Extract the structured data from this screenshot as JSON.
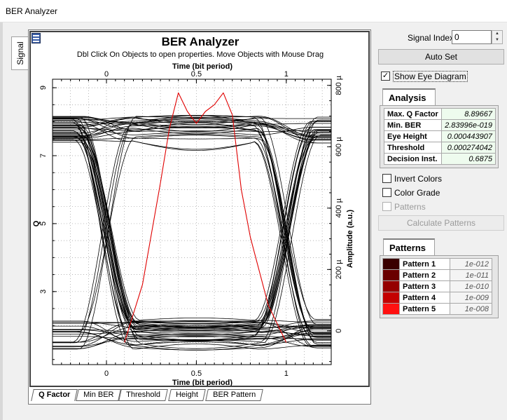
{
  "window": {
    "title": "BER Analyzer"
  },
  "side_tab": {
    "label": "Signal"
  },
  "plot": {
    "title": "BER Analyzer",
    "subtitle": "Dbl Click On Objects to open properties.  Move Objects with Mouse Drag"
  },
  "chart_data": {
    "type": "line",
    "title": "BER Analyzer",
    "xlabel": "Time (bit period)",
    "x2label": "Time (bit period)",
    "ylabel": "Q",
    "y2label": "Amplitude (a.u.)",
    "xlim": [
      -0.3,
      1.25
    ],
    "x_ticks": [
      "0",
      "0.5",
      "1"
    ],
    "x_tick_values": [
      0,
      0.5,
      1
    ],
    "q_ylim": [
      0.85,
      9.25
    ],
    "q_ticks": [
      "3",
      "5",
      "7",
      "9"
    ],
    "q_tick_values": [
      3,
      5,
      7,
      9
    ],
    "amp_ylim": [
      -110,
      820
    ],
    "amp_ticks": [
      "0",
      "200 µ",
      "400 µ",
      "600 µ",
      "800 µ"
    ],
    "amp_tick_values": [
      0,
      200,
      400,
      600,
      800
    ],
    "grid": true,
    "eye_traces": {
      "units": "µ (a.u.)",
      "high_level_range": [
        610,
        700
      ],
      "low_level_range": [
        0,
        100
      ],
      "crossing_times": [
        0,
        1
      ],
      "crossing_amplitude": 295
    },
    "q_factor_curve": {
      "units": "Q",
      "x": [
        0.1,
        0.2,
        0.3,
        0.35,
        0.4,
        0.45,
        0.5,
        0.55,
        0.6,
        0.65,
        0.7,
        0.75,
        0.8,
        0.9,
        1.0
      ],
      "y": [
        1.5,
        3.2,
        6.2,
        7.8,
        8.85,
        8.3,
        7.95,
        8.3,
        8.5,
        8.85,
        8.2,
        6.0,
        4.6,
        2.6,
        1.5
      ],
      "color": "#e00000"
    }
  },
  "bottom_tabs": [
    {
      "label": "Q Factor"
    },
    {
      "label": "Min BER"
    },
    {
      "label": "Threshold"
    },
    {
      "label": "Height"
    },
    {
      "label": "BER Pattern"
    }
  ],
  "controls": {
    "signal_index_label": "Signal Index:",
    "signal_index_value": "0",
    "auto_set_label": "Auto Set",
    "show_eye_label": "Show Eye Diagram",
    "show_eye_checked": "✓",
    "analysis_title": "Analysis",
    "analysis": [
      {
        "key": "Max. Q Factor",
        "value": "8.89667"
      },
      {
        "key": "Min. BER",
        "value": "2.83996e-019"
      },
      {
        "key": "Eye Height",
        "value": "0.000443907"
      },
      {
        "key": "Threshold",
        "value": "0.000274042"
      },
      {
        "key": "Decision Inst.",
        "value": "0.6875"
      }
    ],
    "invert_colors_label": "Invert Colors",
    "color_grade_label": "Color Grade",
    "patterns_check_label": "Patterns",
    "calculate_patterns_label": "Calculate Patterns",
    "patterns_title": "Patterns",
    "patterns": [
      {
        "name": "Pattern 1",
        "value": "1e-012",
        "color": "#3a0000"
      },
      {
        "name": "Pattern 2",
        "value": "1e-011",
        "color": "#6a0000"
      },
      {
        "name": "Pattern 3",
        "value": "1e-010",
        "color": "#950000"
      },
      {
        "name": "Pattern 4",
        "value": "1e-009",
        "color": "#c40000"
      },
      {
        "name": "Pattern 5",
        "value": "1e-008",
        "color": "#ff1010"
      }
    ]
  }
}
